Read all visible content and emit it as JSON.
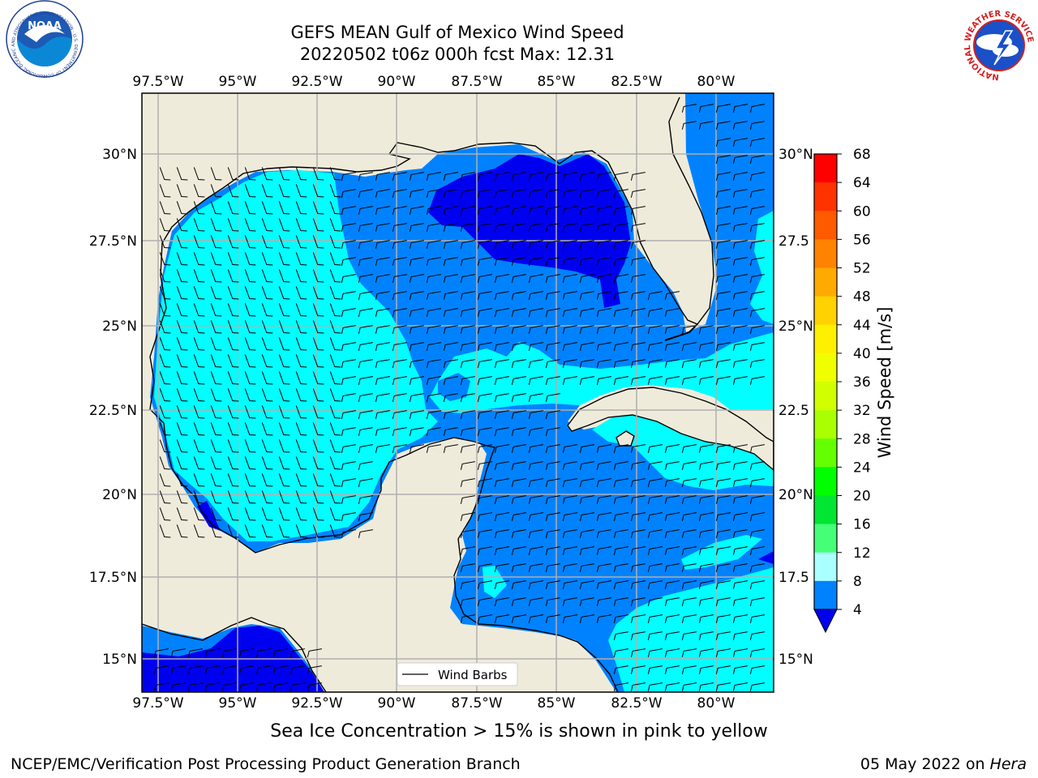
{
  "title": {
    "line1": "GEFS MEAN Gulf of Mexico Wind Speed",
    "line2": "20220502 t06z 000h fcst   Max: 12.31"
  },
  "axes": {
    "lon_labels": [
      "97.5°W",
      "95°W",
      "92.5°W",
      "90°W",
      "87.5°W",
      "85°W",
      "82.5°W",
      "80°W"
    ],
    "lat_labels_left": [
      "30°N",
      "27.5°N",
      "25°N",
      "22.5°N",
      "20°N",
      "17.5°N",
      "15°N"
    ],
    "lat_labels_right": [
      "30°N",
      "27.5",
      "25°N",
      "22.5",
      "20°N",
      "17.5",
      "15°N"
    ]
  },
  "legend": {
    "wind_barbs": "Wind Barbs"
  },
  "colorbar": {
    "label": "Wind Speed [m/s]",
    "ticks": [
      "68",
      "64",
      "60",
      "56",
      "52",
      "48",
      "44",
      "40",
      "36",
      "32",
      "28",
      "24",
      "20",
      "16",
      "12",
      "8",
      "4"
    ],
    "colors": [
      "#ff0000",
      "#ff3200",
      "#ff5a00",
      "#ff8200",
      "#ffaa00",
      "#ffd200",
      "#fff000",
      "#f0ff00",
      "#d2ff00",
      "#aaff00",
      "#64ff00",
      "#00ff00",
      "#00e632",
      "#46ff78",
      "#aaffff",
      "#46ffff",
      "#00ffff",
      "#0082ff"
    ],
    "under_color": "#0000f0"
  },
  "map_colors": {
    "land": "#efebdb",
    "ocean_low": "#0000f0",
    "ocean_4_8": "#0082ff",
    "ocean_8_12": "#00ffff",
    "ocean_12_16": "#46ffff"
  },
  "footer": {
    "note": "Sea Ice Concentration > 15% is shown in pink to yellow",
    "branch": "NCEP/EMC/Verification Post Processing Product Generation Branch",
    "date": "05 May 2022 on ",
    "machine": "Hera"
  },
  "logos": {
    "noaa_text": "NOAA",
    "noaa_ring": "NATIONAL OCEANIC AND ATMOSPHERIC ADMINISTRATION · U.S. DEPARTMENT OF COMMERCE",
    "nws_ring": "NATIONAL WEATHER SERVICE"
  }
}
